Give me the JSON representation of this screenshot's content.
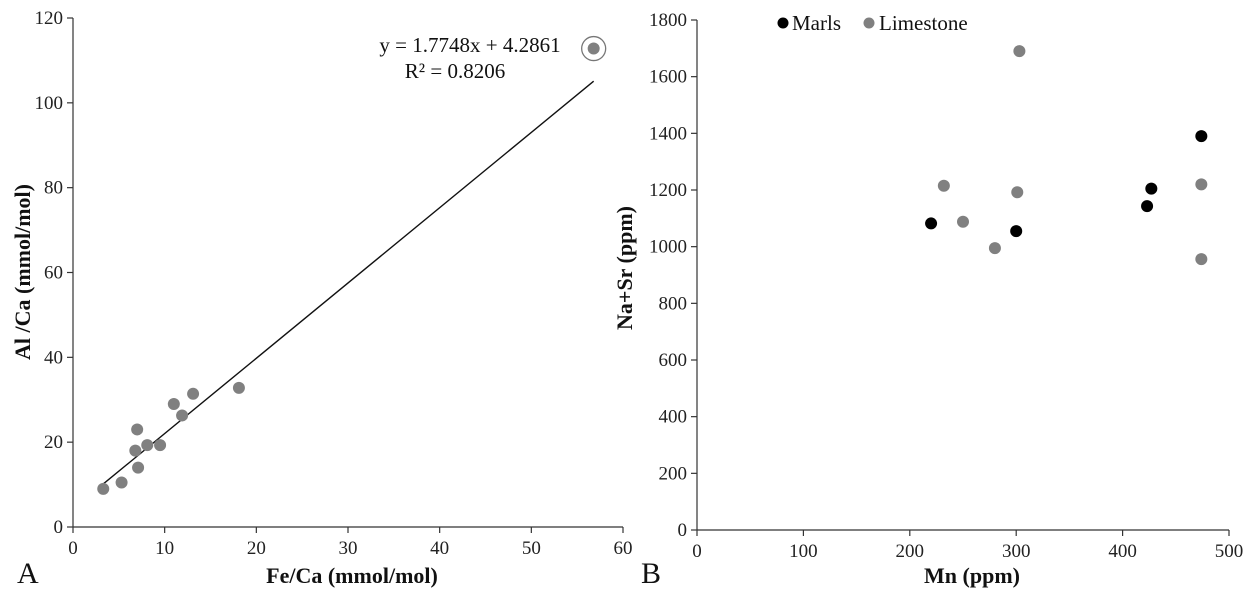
{
  "chart_data": [
    {
      "type": "scatter",
      "panel_label": "A",
      "xlabel": "Fe/Ca (mmol/mol)",
      "ylabel": "Al /Ca (mmol/mol)",
      "xlim": [
        0,
        60
      ],
      "ylim": [
        0,
        120
      ],
      "xticks": [
        0,
        10,
        20,
        30,
        40,
        50,
        60
      ],
      "yticks": [
        0,
        20,
        40,
        60,
        80,
        100,
        120
      ],
      "grid": false,
      "point_color": "#808080",
      "series": [
        {
          "points": [
            [
              3.3,
              9
            ],
            [
              5.3,
              10.5
            ],
            [
              6.8,
              18
            ],
            [
              7.0,
              23
            ],
            [
              7.1,
              14
            ],
            [
              8.1,
              19.3
            ],
            [
              9.5,
              19.3
            ],
            [
              11.0,
              29
            ],
            [
              11.9,
              26.3
            ],
            [
              13.1,
              31.4
            ],
            [
              18.1,
              32.8
            ],
            [
              56.8,
              112.8
            ]
          ]
        }
      ],
      "trendline": {
        "slope": 1.7748,
        "intercept": 4.2861,
        "x_range": [
          3.3,
          56.8
        ]
      },
      "highlighted_point": [
        56.8,
        112.8
      ],
      "annotations": [
        "y = 1.7748x + 4.2861",
        "R² = 0.8206"
      ]
    },
    {
      "type": "scatter",
      "panel_label": "B",
      "xlabel": "Mn (ppm)",
      "ylabel": "Na+Sr (ppm)",
      "xlim": [
        0,
        500
      ],
      "ylim": [
        0,
        1800
      ],
      "xticks": [
        0,
        100,
        200,
        300,
        400,
        500
      ],
      "yticks": [
        0,
        200,
        400,
        600,
        800,
        1000,
        1200,
        1400,
        1600,
        1800
      ],
      "grid": false,
      "legend_position": "top-left",
      "series": [
        {
          "name": "Marls",
          "color": "#000000",
          "points": [
            [
              220,
              1082
            ],
            [
              300,
              1055
            ],
            [
              423,
              1143
            ],
            [
              427,
              1205
            ],
            [
              474,
              1390
            ]
          ]
        },
        {
          "name": "Limestone",
          "color": "#808080",
          "points": [
            [
              232,
              1215
            ],
            [
              250,
              1088
            ],
            [
              280,
              995
            ],
            [
              301,
              1192
            ],
            [
              303,
              1690
            ],
            [
              474,
              1220
            ],
            [
              474,
              956
            ]
          ]
        }
      ]
    }
  ]
}
